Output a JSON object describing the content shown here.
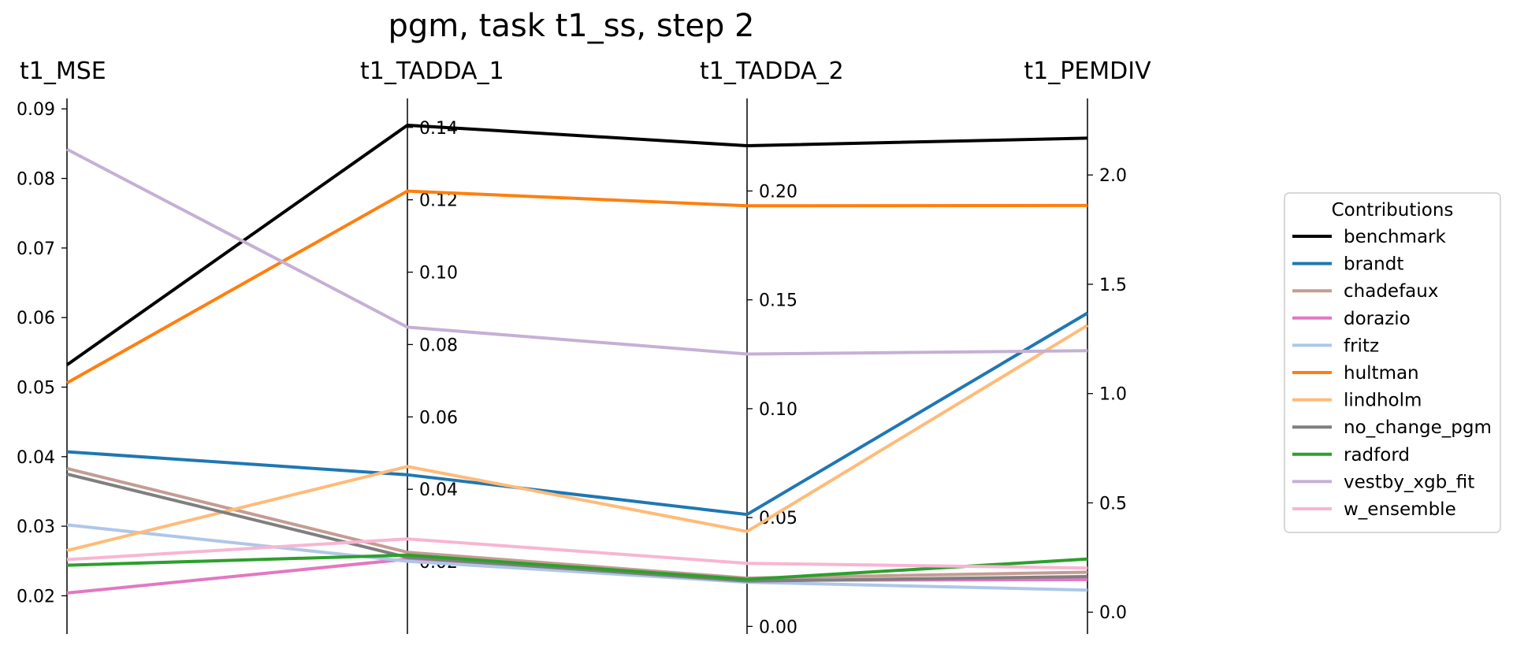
{
  "chart_data": {
    "type": "parallel-coordinates",
    "title": "pgm, task t1_ss, step 2",
    "axes": [
      {
        "name": "t1_MSE",
        "ylim": [
          0.0145,
          0.0915
        ],
        "ticks": [
          0.02,
          0.03,
          0.04,
          0.05,
          0.06,
          0.07,
          0.08,
          0.09
        ],
        "tick_labels": [
          "0.02",
          "0.03",
          "0.04",
          "0.05",
          "0.06",
          "0.07",
          "0.08",
          "0.09"
        ]
      },
      {
        "name": "t1_TADDA_1",
        "ylim": [
          0.0,
          0.148
        ],
        "ticks": [
          0.02,
          0.04,
          0.06,
          0.08,
          0.1,
          0.12,
          0.14
        ],
        "tick_labels": [
          "0.02",
          "0.04",
          "0.06",
          "0.08",
          "0.10",
          "0.12",
          "0.14"
        ]
      },
      {
        "name": "t1_TADDA_2",
        "ylim": [
          -0.0035,
          0.2425
        ],
        "ticks": [
          0.0,
          0.05,
          0.1,
          0.15,
          0.2
        ],
        "tick_labels": [
          "0.00",
          "0.05",
          "0.10",
          "0.15",
          "0.20"
        ]
      },
      {
        "name": "t1_PEMDIV",
        "ylim": [
          -0.1,
          2.35
        ],
        "ticks": [
          0.0,
          0.5,
          1.0,
          1.5,
          2.0
        ],
        "tick_labels": [
          "0.0",
          "0.5",
          "1.0",
          "1.5",
          "2.0"
        ]
      }
    ],
    "legend": {
      "title": "Contributions",
      "placement": "right"
    },
    "series": [
      {
        "name": "benchmark",
        "color": "#000000",
        "values": [
          0.0532,
          0.1406,
          0.2208,
          2.1685
        ]
      },
      {
        "name": "brandt",
        "color": "#1f77b4",
        "values": [
          0.0407,
          0.044,
          0.0514,
          1.3683
        ]
      },
      {
        "name": "chadefaux",
        "color": "#c49c94",
        "values": [
          0.0383,
          0.0226,
          0.0222,
          0.183
        ]
      },
      {
        "name": "dorazio",
        "color": "#e377c2",
        "values": [
          0.0204,
          0.0207,
          0.0212,
          0.149
        ]
      },
      {
        "name": "fritz",
        "color": "#aec7e8",
        "values": [
          0.0302,
          0.0201,
          0.0203,
          0.101
        ]
      },
      {
        "name": "hultman",
        "color": "#ff7f0e",
        "values": [
          0.0506,
          0.1224,
          0.1932,
          1.8604
        ]
      },
      {
        "name": "lindholm",
        "color": "#ffbb78",
        "values": [
          0.0265,
          0.0463,
          0.0436,
          1.312
        ]
      },
      {
        "name": "no_change_pgm",
        "color": "#7f7f7f",
        "values": [
          0.0375,
          0.0212,
          0.0208,
          0.163
        ]
      },
      {
        "name": "radford",
        "color": "#2ca02c",
        "values": [
          0.0244,
          0.0218,
          0.0216,
          0.243
        ]
      },
      {
        "name": "vestby_xgb_fit",
        "color": "#c5b0d5",
        "values": [
          0.0842,
          0.0848,
          0.1251,
          1.196
        ]
      },
      {
        "name": "w_ensemble",
        "color": "#f7b6d2",
        "values": [
          0.0252,
          0.0263,
          0.029,
          0.202
        ]
      }
    ]
  }
}
